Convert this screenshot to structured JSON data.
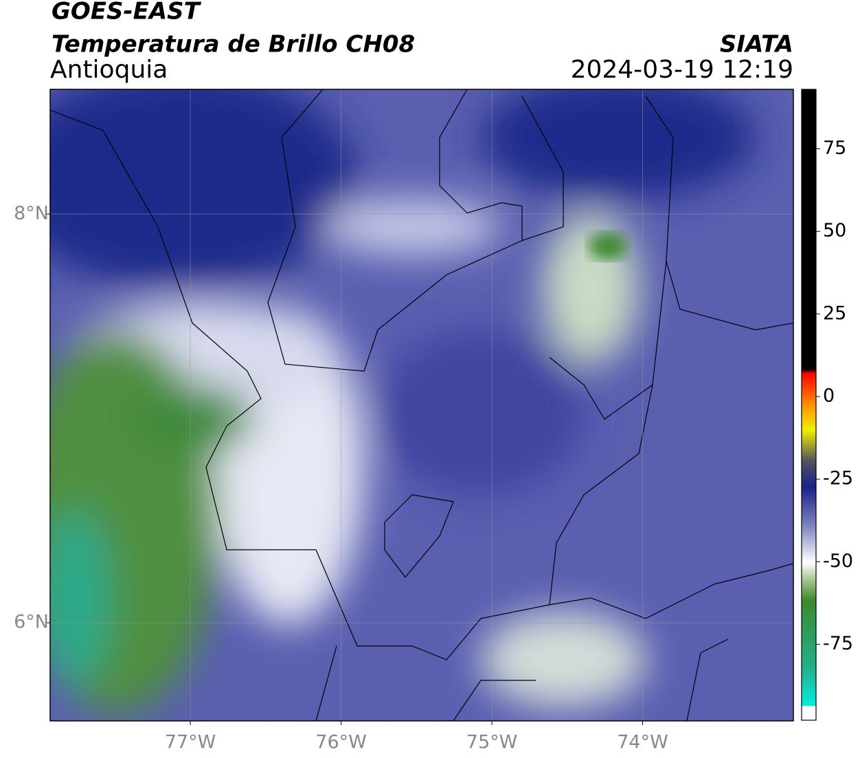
{
  "header": {
    "title": "GOES-EAST",
    "subtitle": "Temperatura de Brillo CH08",
    "region": "Antioquia",
    "source": "SIATA",
    "datetime": "2024-03-19 12:19"
  },
  "map": {
    "xlim": [
      -77.93,
      -73.0
    ],
    "ylim": [
      5.52,
      8.61
    ],
    "xticks": [
      {
        "value": -77,
        "label": "77°W"
      },
      {
        "value": -76,
        "label": "76°W"
      },
      {
        "value": -75,
        "label": "75°W"
      },
      {
        "value": -74,
        "label": "74°W"
      }
    ],
    "yticks": [
      {
        "value": 6,
        "label": "6°N"
      },
      {
        "value": 8,
        "label": "8°N"
      }
    ],
    "grid": true
  },
  "colorbar": {
    "lim": [
      -98,
      93
    ],
    "ticks": [
      75,
      50,
      25,
      0,
      -25,
      -50,
      -75
    ]
  }
}
